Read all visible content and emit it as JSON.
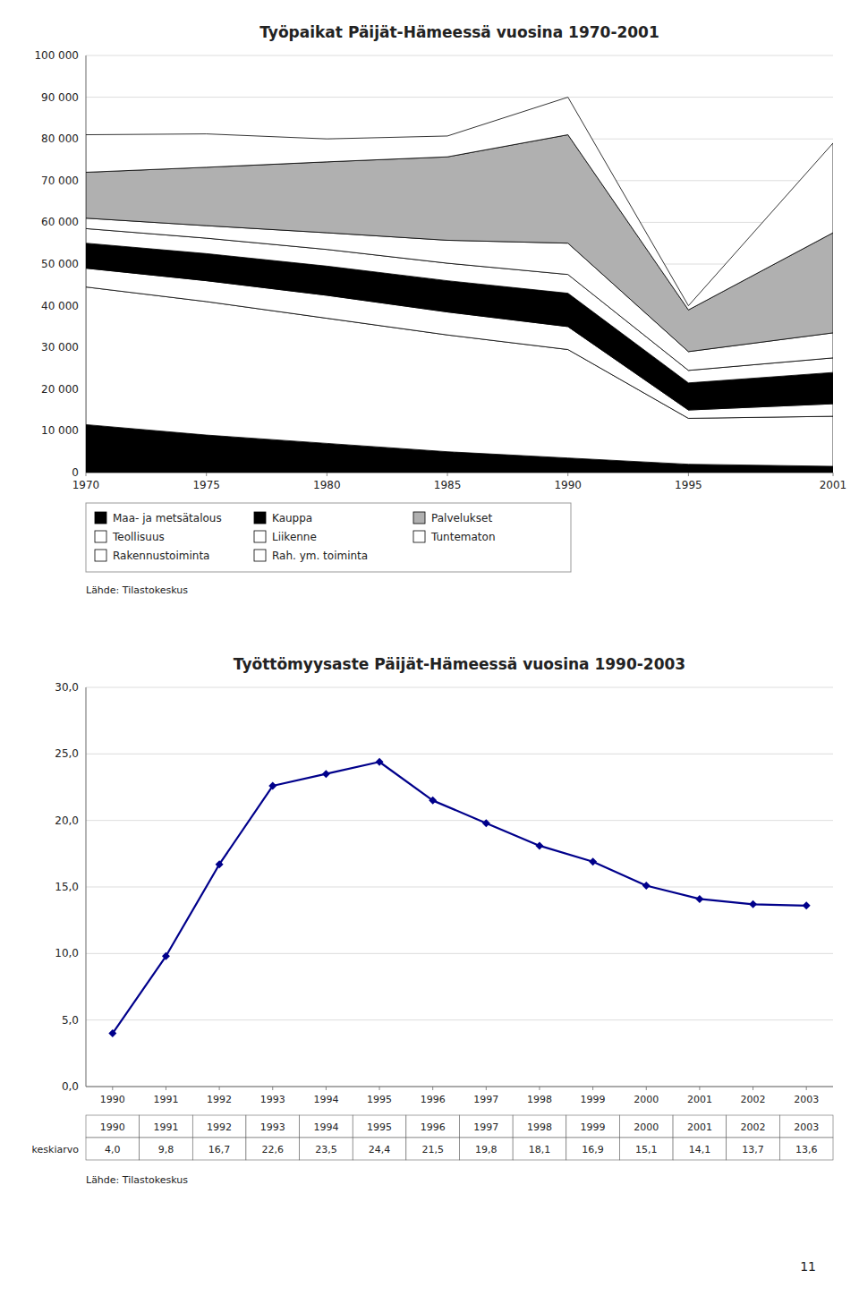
{
  "chart_data": [
    {
      "type": "area",
      "stacked": true,
      "title": "Työpaikat Päijät-Hämeessä vuosina 1970-2001",
      "source": "Lähde: Tilastokeskus",
      "x": [
        1970,
        1975,
        1980,
        1985,
        1990,
        1995,
        2001
      ],
      "xlim": [
        1970,
        2001
      ],
      "xticks": [
        1970,
        1975,
        1980,
        1985,
        1990,
        1995,
        2001
      ],
      "ylim": [
        0,
        100000
      ],
      "yticks": [
        0,
        {
          "value": 10000,
          "label": "10 000"
        },
        {
          "value": 20000,
          "label": "20 000"
        },
        {
          "value": 30000,
          "label": "30 000"
        },
        {
          "value": 40000,
          "label": "40 000"
        },
        {
          "value": 50000,
          "label": "50 000"
        },
        {
          "value": 60000,
          "label": "60 000"
        },
        {
          "value": 70000,
          "label": "70 000"
        },
        {
          "value": 80000,
          "label": "80 000"
        },
        {
          "value": 90000,
          "label": "90 000"
        },
        {
          "value": 100000,
          "label": "100 000"
        }
      ],
      "grid": true,
      "legend": "bottom",
      "series": [
        {
          "name": "Maa- ja metsätalous",
          "color": "#000000",
          "values": [
            11500,
            9000,
            7000,
            5000,
            3500,
            2000,
            1500
          ]
        },
        {
          "name": "Teollisuus",
          "color": "#ffffff",
          "values": [
            33000,
            32000,
            30000,
            28000,
            26000,
            11000,
            12000
          ]
        },
        {
          "name": "Rakennustoiminta",
          "color": "#ffffff",
          "values": [
            4500,
            5000,
            5500,
            5500,
            5500,
            2000,
            3000
          ]
        },
        {
          "name": "Kauppa",
          "color": "#000000",
          "values": [
            6000,
            6500,
            7000,
            7500,
            8000,
            6500,
            7500
          ]
        },
        {
          "name": "Liikenne",
          "color": "#ffffff",
          "values": [
            3500,
            3700,
            4000,
            4200,
            4500,
            3000,
            3500
          ]
        },
        {
          "name": "Rah. ym. toiminta",
          "color": "#ffffff",
          "values": [
            2500,
            3000,
            4000,
            5500,
            7500,
            4500,
            6000
          ]
        },
        {
          "name": "Palvelukset",
          "color": "#b0b0b0",
          "values": [
            11000,
            14000,
            17000,
            20000,
            26000,
            10000,
            24000
          ]
        },
        {
          "name": "Tuntematon",
          "color": "#ffffff",
          "values": [
            9000,
            8000,
            5500,
            5000,
            9000,
            1000,
            21500
          ]
        }
      ]
    },
    {
      "type": "line",
      "title": "Työttömyysaste Päijät-Hämeessä vuosina 1990-2003",
      "source": "Lähde: Tilastokeskus",
      "x": [
        1990,
        1991,
        1992,
        1993,
        1994,
        1995,
        1996,
        1997,
        1998,
        1999,
        2000,
        2001,
        2002,
        2003
      ],
      "xlim": [
        1989.5,
        2003.5
      ],
      "xticks": [
        1990,
        1991,
        1992,
        1993,
        1994,
        1995,
        1996,
        1997,
        1998,
        1999,
        2000,
        2001,
        2002,
        2003
      ],
      "ylim": [
        0,
        30
      ],
      "yticks": [
        {
          "value": 0,
          "label": "0,0"
        },
        {
          "value": 5,
          "label": "5,0"
        },
        {
          "value": 10,
          "label": "10,0"
        },
        {
          "value": 15,
          "label": "15,0"
        },
        {
          "value": 20,
          "label": "20,0"
        },
        {
          "value": 25,
          "label": "25,0"
        },
        {
          "value": 30,
          "label": "30,0"
        }
      ],
      "grid": true,
      "color": "#00008b",
      "marker": "diamond",
      "values": [
        4.0,
        9.8,
        16.7,
        22.6,
        23.5,
        24.4,
        21.5,
        19.8,
        18.1,
        16.9,
        15.1,
        14.1,
        13.7,
        13.6
      ],
      "value_labels": [
        "4,0",
        "9,8",
        "16,7",
        "22,6",
        "23,5",
        "24,4",
        "21,5",
        "19,8",
        "18,1",
        "16,9",
        "15,1",
        "14,1",
        "13,7",
        "13,6"
      ],
      "table_label": "keskiarvo"
    }
  ],
  "page_number": "11"
}
